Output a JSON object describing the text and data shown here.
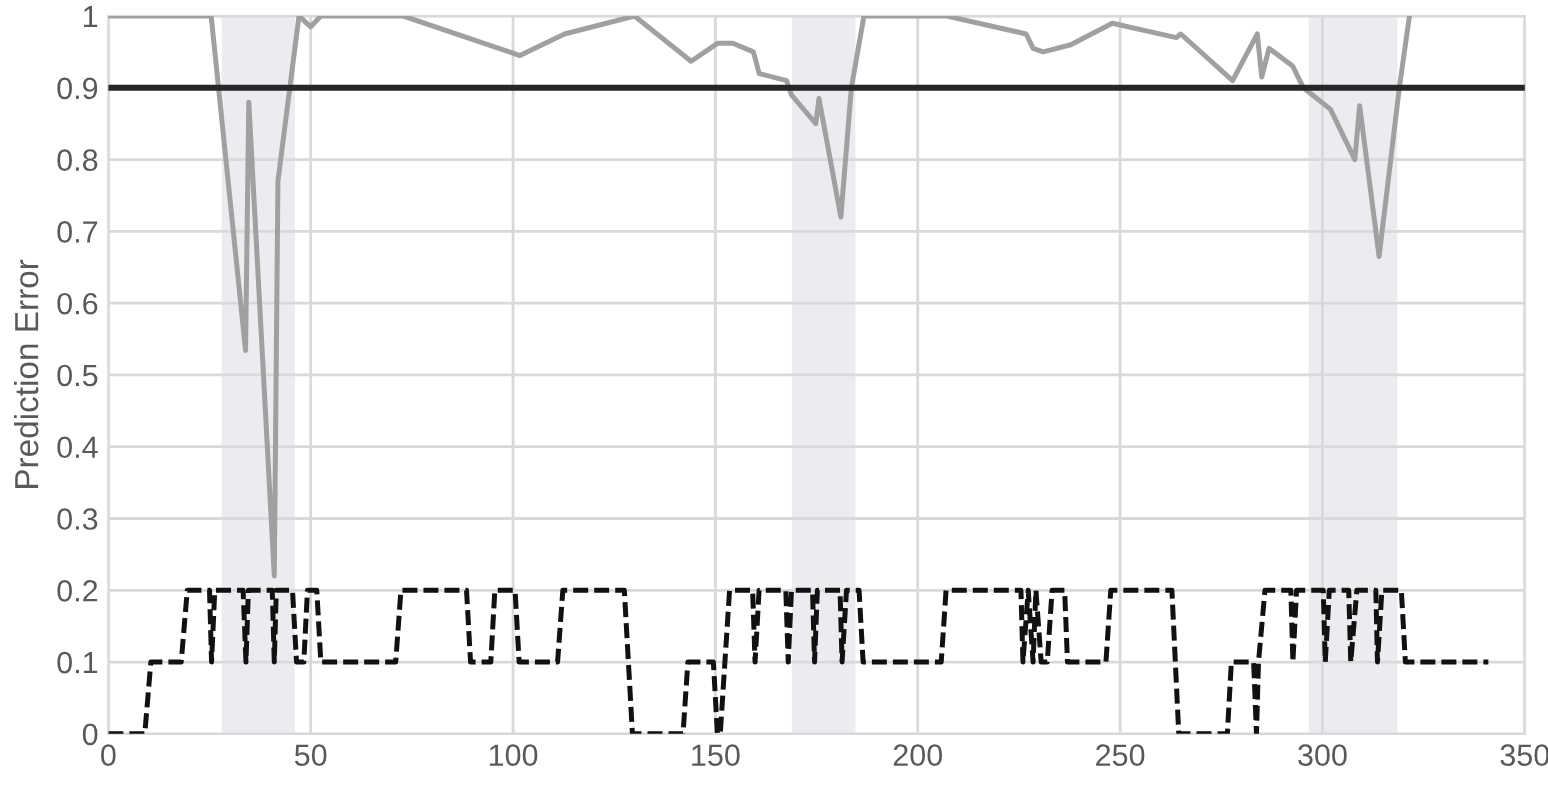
{
  "chart_data": {
    "type": "line",
    "ylabel": "Prediction Error",
    "xlim": [
      0,
      350
    ],
    "ylim": [
      0,
      1
    ],
    "xticks": [
      0,
      50,
      100,
      150,
      200,
      250,
      300,
      350
    ],
    "yticks": [
      0,
      0.1,
      0.2,
      0.3,
      0.4,
      0.5,
      0.6,
      0.7,
      0.8,
      0.9,
      1
    ],
    "grid": true,
    "legend": false,
    "marker": "none",
    "ref_lines": [
      {
        "axis": "y",
        "value": 0.9,
        "color": "#262626",
        "line_style": "solid"
      }
    ],
    "bands": [
      {
        "axis": "x",
        "from": 28,
        "to": 46.1,
        "color": "#ebecef"
      },
      {
        "axis": "x",
        "from": 168.9,
        "to": 184.6,
        "color": "#ebecef"
      },
      {
        "axis": "x",
        "from": 296.6,
        "to": 318.5,
        "color": "#ebecef"
      }
    ],
    "series": [
      {
        "color": "#a0a0a0",
        "line_style": "solid",
        "x": [
          0,
          25.4,
          33.9,
          34.7,
          41,
          41.9,
          47.1,
          50,
          52.5,
          72.9,
          101.7,
          112.7,
          130,
          144,
          150.5,
          154.3,
          159.4,
          160.8,
          167.6,
          168.8,
          174.8,
          175.6,
          181,
          183.6,
          186.7,
          207.2,
          226.8,
          228.5,
          231,
          237.8,
          248.1,
          263.9,
          265,
          277.8,
          283.9,
          285,
          286.8,
          292.7,
          295.3,
          302,
          308,
          309.2,
          314,
          319,
          321.5
        ],
        "values": [
          1,
          1,
          0.534,
          0.88,
          0.22,
          0.77,
          1,
          0.985,
          1,
          1,
          0.945,
          0.975,
          1,
          0.937,
          0.962,
          0.962,
          0.95,
          0.92,
          0.91,
          0.89,
          0.85,
          0.885,
          0.72,
          0.9,
          1,
          1,
          0.975,
          0.955,
          0.95,
          0.96,
          0.99,
          0.97,
          0.975,
          0.91,
          0.975,
          0.915,
          0.955,
          0.93,
          0.9,
          0.87,
          0.8,
          0.875,
          0.665,
          0.9,
          1
        ]
      },
      {
        "color": "#111111",
        "line_style": "dashed",
        "x": [
          0,
          9,
          10.5,
          18,
          19.5,
          25,
          25.5,
          26.3,
          33.3,
          34,
          34.6,
          40.5,
          41,
          41.5,
          45.5,
          46.5,
          48.3,
          49.2,
          51.5,
          52.5,
          71,
          72.3,
          88.5,
          89.5,
          94.5,
          95.5,
          100.5,
          101.5,
          111,
          112.3,
          127.5,
          129.5,
          142,
          143.2,
          149.5,
          150.5,
          151.2,
          153.5,
          159.2,
          159.8,
          160.8,
          167.4,
          168,
          168.8,
          174,
          174.5,
          175.2,
          180.8,
          181.3,
          182.4,
          185.5,
          186.5,
          205.8,
          207,
          225.5,
          226,
          227.3,
          228.5,
          229.2,
          230.5,
          232,
          233.2,
          236.3,
          237,
          246.5,
          247.7,
          262.8,
          264.5,
          276.5,
          277.5,
          283,
          283.7,
          284.2,
          285.8,
          292.2,
          292.7,
          293.6,
          300.2,
          300.7,
          301.7,
          306.5,
          307,
          308.5,
          313.2,
          313.6,
          314.7,
          319.5,
          320.5,
          341
        ],
        "values": [
          0,
          0,
          0.1,
          0.1,
          0.2,
          0.2,
          0.1,
          0.2,
          0.2,
          0.1,
          0.2,
          0.2,
          0.1,
          0.2,
          0.2,
          0.1,
          0.1,
          0.2,
          0.2,
          0.1,
          0.1,
          0.2,
          0.2,
          0.1,
          0.1,
          0.2,
          0.2,
          0.1,
          0.1,
          0.2,
          0.2,
          0,
          0,
          0.1,
          0.1,
          0,
          0,
          0.2,
          0.2,
          0.1,
          0.2,
          0.2,
          0.1,
          0.2,
          0.2,
          0.1,
          0.2,
          0.2,
          0.1,
          0.2,
          0.2,
          0.1,
          0.1,
          0.2,
          0.2,
          0.1,
          0.2,
          0.1,
          0.2,
          0.1,
          0.1,
          0.2,
          0.2,
          0.1,
          0.1,
          0.2,
          0.2,
          0,
          0,
          0.1,
          0.1,
          0,
          0.1,
          0.2,
          0.2,
          0.1,
          0.2,
          0.2,
          0.1,
          0.2,
          0.2,
          0.1,
          0.2,
          0.2,
          0.1,
          0.2,
          0.2,
          0.1,
          0.1
        ]
      }
    ]
  }
}
